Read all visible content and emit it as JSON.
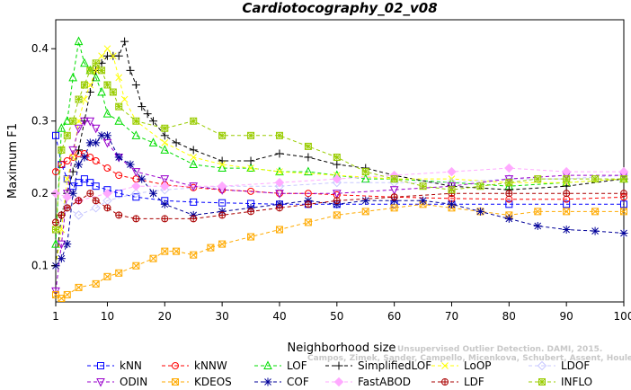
{
  "chart_data": {
    "type": "line",
    "title": "Cardiotocography_02_v08",
    "xlabel": "Neighborhood size",
    "ylabel": "Maximum F1",
    "xlim": [
      1,
      100
    ],
    "ylim": [
      0.05,
      0.44
    ],
    "xticks": [
      1,
      10,
      20,
      30,
      40,
      50,
      60,
      70,
      80,
      90,
      100
    ],
    "yticks": [
      0.1,
      0.2,
      0.3,
      0.4
    ],
    "legend_position": "bottom",
    "watermark": [
      "Unsupervised Outlier Detection. DAMI, 2015.",
      "Campos, Zimek, Sander, Campello, Micenkova, Schubert, Assent, Houle"
    ],
    "series": [
      {
        "name": "kNN",
        "color": "#0000ff",
        "marker": "square",
        "points": [
          [
            1,
            0.28
          ],
          [
            2,
            0.24
          ],
          [
            3,
            0.22
          ],
          [
            4,
            0.21
          ],
          [
            5,
            0.215
          ],
          [
            6,
            0.22
          ],
          [
            7,
            0.215
          ],
          [
            8,
            0.21
          ],
          [
            10,
            0.205
          ],
          [
            12,
            0.2
          ],
          [
            15,
            0.195
          ],
          [
            20,
            0.19
          ],
          [
            25,
            0.188
          ],
          [
            30,
            0.187
          ],
          [
            35,
            0.186
          ],
          [
            40,
            0.185
          ],
          [
            45,
            0.185
          ],
          [
            50,
            0.185
          ],
          [
            60,
            0.185
          ],
          [
            70,
            0.185
          ],
          [
            80,
            0.185
          ],
          [
            90,
            0.185
          ],
          [
            100,
            0.185
          ]
        ]
      },
      {
        "name": "kNNW",
        "color": "#ff0000",
        "marker": "circle",
        "points": [
          [
            1,
            0.23
          ],
          [
            2,
            0.24
          ],
          [
            3,
            0.245
          ],
          [
            4,
            0.25
          ],
          [
            5,
            0.255
          ],
          [
            6,
            0.255
          ],
          [
            7,
            0.25
          ],
          [
            8,
            0.245
          ],
          [
            10,
            0.235
          ],
          [
            12,
            0.225
          ],
          [
            15,
            0.22
          ],
          [
            20,
            0.212
          ],
          [
            25,
            0.208
          ],
          [
            30,
            0.205
          ],
          [
            35,
            0.203
          ],
          [
            40,
            0.2
          ],
          [
            45,
            0.2
          ],
          [
            50,
            0.198
          ],
          [
            60,
            0.195
          ],
          [
            70,
            0.193
          ],
          [
            80,
            0.192
          ],
          [
            90,
            0.192
          ],
          [
            100,
            0.195
          ]
        ]
      },
      {
        "name": "LOF",
        "color": "#00dd00",
        "marker": "triangle",
        "points": [
          [
            1,
            0.13
          ],
          [
            2,
            0.29
          ],
          [
            3,
            0.3
          ],
          [
            4,
            0.36
          ],
          [
            5,
            0.41
          ],
          [
            6,
            0.38
          ],
          [
            7,
            0.37
          ],
          [
            8,
            0.36
          ],
          [
            9,
            0.34
          ],
          [
            10,
            0.31
          ],
          [
            12,
            0.3
          ],
          [
            15,
            0.28
          ],
          [
            18,
            0.27
          ],
          [
            20,
            0.26
          ],
          [
            25,
            0.24
          ],
          [
            30,
            0.235
          ],
          [
            35,
            0.235
          ],
          [
            40,
            0.23
          ],
          [
            45,
            0.23
          ],
          [
            50,
            0.225
          ],
          [
            55,
            0.22
          ],
          [
            60,
            0.22
          ],
          [
            70,
            0.215
          ],
          [
            80,
            0.21
          ],
          [
            90,
            0.215
          ],
          [
            100,
            0.22
          ]
        ]
      },
      {
        "name": "SimplifiedLOF",
        "color": "#000000",
        "marker": "plus",
        "points": [
          [
            1,
            0.1
          ],
          [
            2,
            0.17
          ],
          [
            3,
            0.2
          ],
          [
            4,
            0.23
          ],
          [
            5,
            0.26
          ],
          [
            6,
            0.3
          ],
          [
            7,
            0.34
          ],
          [
            8,
            0.37
          ],
          [
            9,
            0.38
          ],
          [
            10,
            0.39
          ],
          [
            11,
            0.39
          ],
          [
            12,
            0.39
          ],
          [
            13,
            0.41
          ],
          [
            14,
            0.37
          ],
          [
            15,
            0.35
          ],
          [
            16,
            0.32
          ],
          [
            17,
            0.31
          ],
          [
            18,
            0.3
          ],
          [
            20,
            0.28
          ],
          [
            22,
            0.27
          ],
          [
            25,
            0.26
          ],
          [
            30,
            0.245
          ],
          [
            35,
            0.245
          ],
          [
            40,
            0.255
          ],
          [
            45,
            0.25
          ],
          [
            50,
            0.24
          ],
          [
            55,
            0.235
          ],
          [
            60,
            0.225
          ],
          [
            70,
            0.21
          ],
          [
            80,
            0.205
          ],
          [
            90,
            0.21
          ],
          [
            100,
            0.22
          ]
        ]
      },
      {
        "name": "LoOP",
        "color": "#ffff00",
        "marker": "x",
        "points": [
          [
            1,
            0.1
          ],
          [
            2,
            0.15
          ],
          [
            3,
            0.22
          ],
          [
            4,
            0.25
          ],
          [
            5,
            0.3
          ],
          [
            6,
            0.33
          ],
          [
            7,
            0.35
          ],
          [
            8,
            0.37
          ],
          [
            9,
            0.39
          ],
          [
            10,
            0.4
          ],
          [
            11,
            0.39
          ],
          [
            12,
            0.36
          ],
          [
            13,
            0.33
          ],
          [
            15,
            0.3
          ],
          [
            20,
            0.27
          ],
          [
            25,
            0.25
          ],
          [
            30,
            0.24
          ],
          [
            35,
            0.235
          ],
          [
            40,
            0.23
          ],
          [
            50,
            0.225
          ],
          [
            60,
            0.22
          ],
          [
            70,
            0.22
          ],
          [
            80,
            0.215
          ],
          [
            90,
            0.215
          ],
          [
            100,
            0.22
          ]
        ]
      },
      {
        "name": "LDOF",
        "color": "#c8c8ff",
        "marker": "diamond",
        "points": [
          [
            1,
            0.2
          ],
          [
            3,
            0.18
          ],
          [
            5,
            0.17
          ],
          [
            8,
            0.18
          ],
          [
            10,
            0.19
          ],
          [
            15,
            0.2
          ],
          [
            20,
            0.205
          ],
          [
            30,
            0.21
          ],
          [
            40,
            0.21
          ],
          [
            50,
            0.215
          ],
          [
            60,
            0.215
          ],
          [
            70,
            0.215
          ],
          [
            80,
            0.22
          ],
          [
            90,
            0.22
          ],
          [
            100,
            0.225
          ]
        ]
      },
      {
        "name": "ODIN",
        "color": "#9900cc",
        "marker": "triangle-down",
        "points": [
          [
            1,
            0.065
          ],
          [
            2,
            0.13
          ],
          [
            3,
            0.2
          ],
          [
            4,
            0.26
          ],
          [
            5,
            0.29
          ],
          [
            6,
            0.3
          ],
          [
            7,
            0.3
          ],
          [
            8,
            0.29
          ],
          [
            10,
            0.27
          ],
          [
            12,
            0.25
          ],
          [
            15,
            0.23
          ],
          [
            20,
            0.22
          ],
          [
            25,
            0.21
          ],
          [
            30,
            0.205
          ],
          [
            40,
            0.2
          ],
          [
            50,
            0.2
          ],
          [
            60,
            0.205
          ],
          [
            70,
            0.21
          ],
          [
            80,
            0.22
          ],
          [
            90,
            0.225
          ],
          [
            100,
            0.225
          ]
        ]
      },
      {
        "name": "KDEOS",
        "color": "#ffaa00",
        "marker": "square-x",
        "points": [
          [
            1,
            0.06
          ],
          [
            2,
            0.055
          ],
          [
            3,
            0.06
          ],
          [
            5,
            0.07
          ],
          [
            8,
            0.075
          ],
          [
            10,
            0.085
          ],
          [
            12,
            0.09
          ],
          [
            15,
            0.1
          ],
          [
            18,
            0.11
          ],
          [
            20,
            0.12
          ],
          [
            22,
            0.12
          ],
          [
            25,
            0.115
          ],
          [
            28,
            0.125
          ],
          [
            30,
            0.13
          ],
          [
            35,
            0.14
          ],
          [
            40,
            0.15
          ],
          [
            45,
            0.16
          ],
          [
            50,
            0.17
          ],
          [
            55,
            0.175
          ],
          [
            60,
            0.18
          ],
          [
            65,
            0.185
          ],
          [
            70,
            0.18
          ],
          [
            75,
            0.175
          ],
          [
            80,
            0.17
          ],
          [
            85,
            0.175
          ],
          [
            90,
            0.175
          ],
          [
            95,
            0.175
          ],
          [
            100,
            0.175
          ]
        ]
      },
      {
        "name": "COF",
        "color": "#000099",
        "marker": "star",
        "points": [
          [
            1,
            0.1
          ],
          [
            2,
            0.11
          ],
          [
            3,
            0.13
          ],
          [
            4,
            0.2
          ],
          [
            5,
            0.24
          ],
          [
            6,
            0.25
          ],
          [
            7,
            0.27
          ],
          [
            8,
            0.27
          ],
          [
            9,
            0.28
          ],
          [
            10,
            0.28
          ],
          [
            12,
            0.25
          ],
          [
            14,
            0.24
          ],
          [
            16,
            0.22
          ],
          [
            18,
            0.2
          ],
          [
            20,
            0.185
          ],
          [
            25,
            0.17
          ],
          [
            30,
            0.175
          ],
          [
            35,
            0.18
          ],
          [
            40,
            0.185
          ],
          [
            45,
            0.19
          ],
          [
            50,
            0.185
          ],
          [
            55,
            0.19
          ],
          [
            60,
            0.19
          ],
          [
            65,
            0.19
          ],
          [
            70,
            0.185
          ],
          [
            75,
            0.175
          ],
          [
            80,
            0.165
          ],
          [
            85,
            0.155
          ],
          [
            90,
            0.15
          ],
          [
            95,
            0.148
          ],
          [
            100,
            0.145
          ]
        ]
      },
      {
        "name": "FastABOD",
        "color": "#ffaaff",
        "marker": "diamond-filled",
        "points": [
          [
            1,
            0.2
          ],
          [
            3,
            0.195
          ],
          [
            5,
            0.19
          ],
          [
            10,
            0.2
          ],
          [
            15,
            0.21
          ],
          [
            20,
            0.21
          ],
          [
            30,
            0.21
          ],
          [
            40,
            0.215
          ],
          [
            50,
            0.22
          ],
          [
            60,
            0.225
          ],
          [
            70,
            0.23
          ],
          [
            80,
            0.235
          ],
          [
            90,
            0.23
          ],
          [
            100,
            0.23
          ]
        ]
      },
      {
        "name": "LDF",
        "color": "#aa0000",
        "marker": "circle-plus",
        "points": [
          [
            1,
            0.16
          ],
          [
            2,
            0.17
          ],
          [
            3,
            0.18
          ],
          [
            5,
            0.19
          ],
          [
            7,
            0.2
          ],
          [
            8,
            0.19
          ],
          [
            10,
            0.18
          ],
          [
            12,
            0.17
          ],
          [
            15,
            0.165
          ],
          [
            20,
            0.165
          ],
          [
            25,
            0.165
          ],
          [
            30,
            0.17
          ],
          [
            35,
            0.175
          ],
          [
            40,
            0.18
          ],
          [
            45,
            0.185
          ],
          [
            50,
            0.19
          ],
          [
            60,
            0.195
          ],
          [
            70,
            0.2
          ],
          [
            80,
            0.2
          ],
          [
            90,
            0.2
          ],
          [
            100,
            0.2
          ]
        ]
      },
      {
        "name": "INFLO",
        "color": "#99cc00",
        "marker": "square-star",
        "points": [
          [
            1,
            0.15
          ],
          [
            2,
            0.26
          ],
          [
            3,
            0.28
          ],
          [
            4,
            0.3
          ],
          [
            5,
            0.33
          ],
          [
            6,
            0.35
          ],
          [
            7,
            0.37
          ],
          [
            8,
            0.38
          ],
          [
            9,
            0.37
          ],
          [
            10,
            0.35
          ],
          [
            11,
            0.34
          ],
          [
            12,
            0.32
          ],
          [
            15,
            0.3
          ],
          [
            20,
            0.29
          ],
          [
            25,
            0.3
          ],
          [
            30,
            0.28
          ],
          [
            35,
            0.28
          ],
          [
            40,
            0.28
          ],
          [
            45,
            0.265
          ],
          [
            50,
            0.25
          ],
          [
            55,
            0.23
          ],
          [
            60,
            0.22
          ],
          [
            65,
            0.21
          ],
          [
            70,
            0.205
          ],
          [
            75,
            0.21
          ],
          [
            80,
            0.215
          ],
          [
            85,
            0.22
          ],
          [
            90,
            0.22
          ],
          [
            95,
            0.22
          ],
          [
            100,
            0.22
          ]
        ]
      }
    ]
  }
}
